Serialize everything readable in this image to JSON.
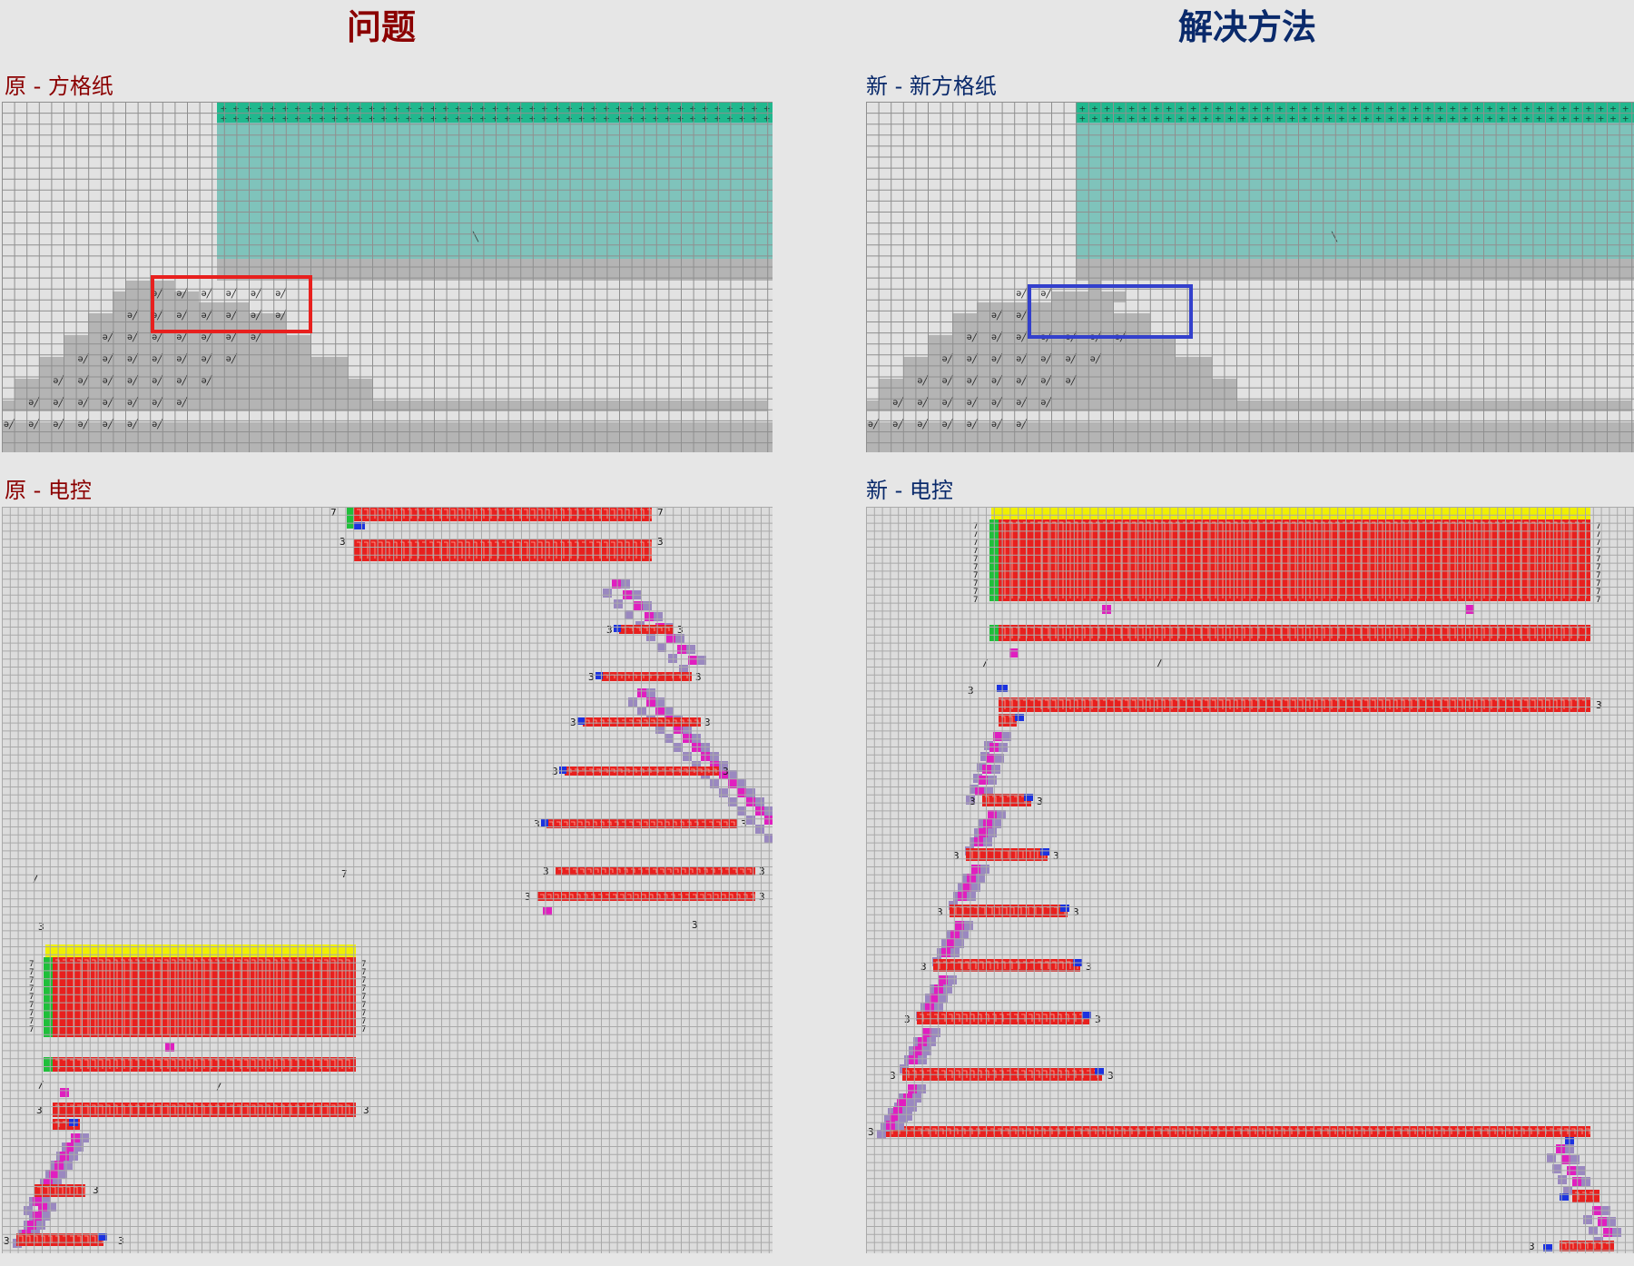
{
  "headers": {
    "left": "问题",
    "right": "解决方法"
  },
  "sections": {
    "orig_grid": "原 - 方格纸",
    "new_grid": "新 - 新方格纸",
    "orig_ctrl": "原 - 电控",
    "new_ctrl": "新 - 电控"
  },
  "colors": {
    "left_accent": "#8b0000",
    "right_accent": "#0a2a6b",
    "teal": "#7fc3bb",
    "teal_top": "#21b88e",
    "gray_block": "#b4b4b4",
    "red_bar": "#e8201e",
    "yellow": "#f0f000",
    "green": "#1fbf3a",
    "magenta": "#e01ec0",
    "purple": "#9a88c0",
    "blue": "#1b32e0",
    "highlight_red": "#e8201e",
    "highlight_blue": "#3340cc"
  },
  "symbols": {
    "cross": "+",
    "stitch": "ə╱",
    "num3": "3",
    "num7": "7",
    "slash": "/"
  }
}
